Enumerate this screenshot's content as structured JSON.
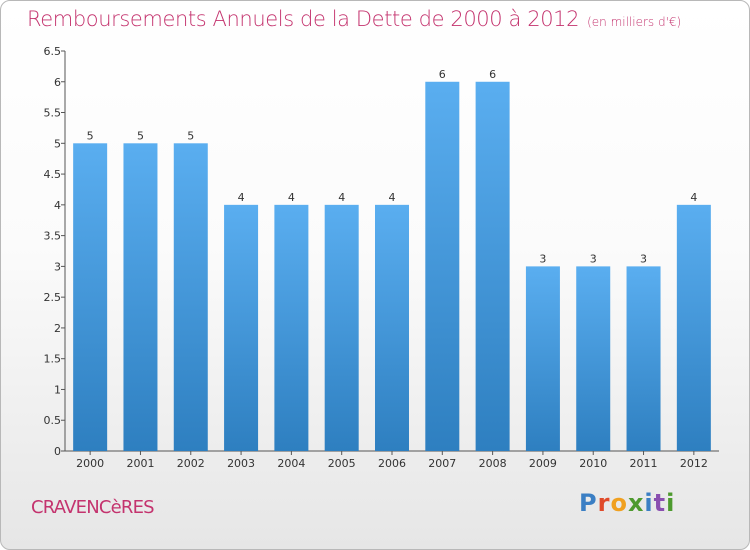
{
  "header": {
    "title": "Remboursements Annuels de la Dette de 2000 à 2012",
    "unit": "(en milliers d'€)"
  },
  "footer": {
    "commune": "CRAVENCèRES",
    "logo": [
      "P",
      "r",
      "o",
      "x",
      "i",
      "t",
      "i"
    ]
  },
  "colors": {
    "title": "#c4336e",
    "bar_top": "#5aaef0",
    "bar_bottom": "#2e7fc0"
  },
  "chart_data": {
    "type": "bar",
    "categories": [
      "2000",
      "2001",
      "2002",
      "2003",
      "2004",
      "2005",
      "2006",
      "2007",
      "2008",
      "2009",
      "2010",
      "2011",
      "2012"
    ],
    "values": [
      5,
      5,
      5,
      4,
      4,
      4,
      4,
      6,
      6,
      3,
      3,
      3,
      4
    ],
    "data_labels": [
      "5",
      "5",
      "5",
      "4",
      "4",
      "4",
      "4",
      "6",
      "6",
      "3",
      "3",
      "3",
      "4"
    ],
    "title": "Remboursements Annuels de la Dette de 2000 à 2012",
    "xlabel": "",
    "ylabel": "",
    "ylim": [
      0,
      6.5
    ],
    "yticks": [
      0,
      0.5,
      1,
      1.5,
      2,
      2.5,
      3,
      3.5,
      4,
      4.5,
      5,
      5.5,
      6,
      6.5
    ],
    "ytick_labels": [
      "0",
      "0.5",
      "1",
      "1.5",
      "2",
      "2.5",
      "3",
      "3.5",
      "4",
      "4.5",
      "5",
      "5.5",
      "6",
      "6.5"
    ],
    "grid": false,
    "legend": "none"
  }
}
